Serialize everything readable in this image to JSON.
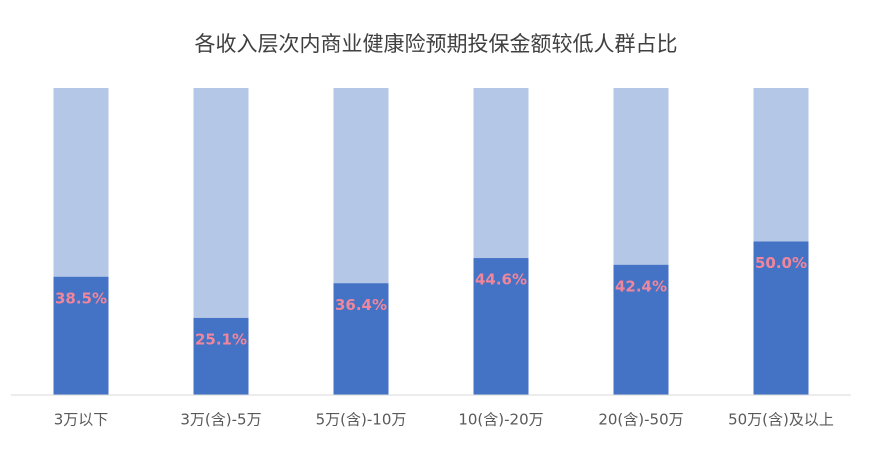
{
  "chart_data": {
    "type": "bar",
    "title": "各收入层次内商业健康险预期投保金额较低人群占比",
    "categories": [
      "3万以下",
      "3万(含)-5万",
      "5万(含)-10万",
      "10(含)-20万",
      "20(含)-50万",
      "50万(含)及以上"
    ],
    "values": [
      38.5,
      25.1,
      36.4,
      44.6,
      42.4,
      50.0
    ],
    "value_labels": [
      "38.5%",
      "25.1%",
      "36.4%",
      "44.6%",
      "42.4%",
      "50.0%"
    ],
    "color": "#4472c4",
    "track_color": "#b4c7e7",
    "label_color": "#f0869c",
    "ylim": [
      0,
      100
    ]
  }
}
